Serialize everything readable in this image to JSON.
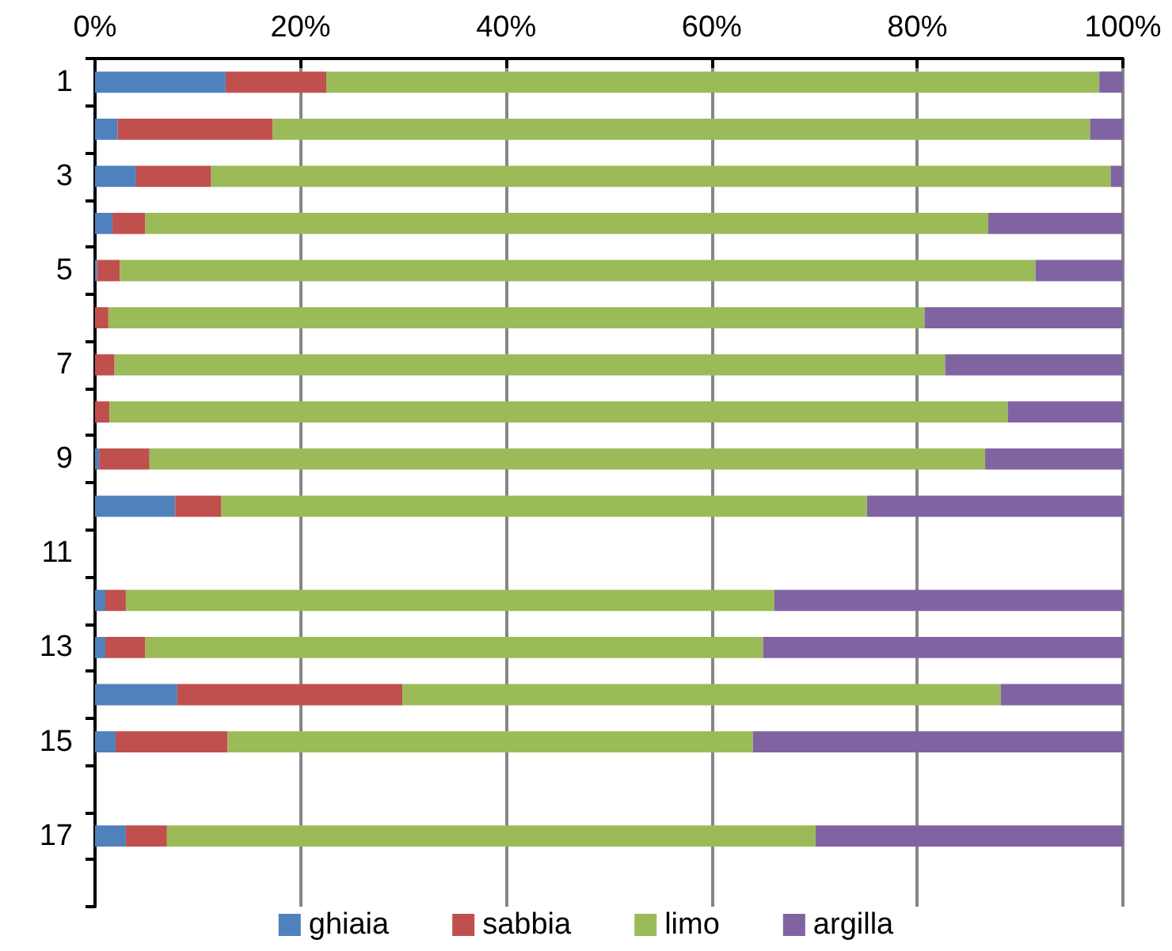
{
  "chart_data": {
    "type": "bar",
    "orientation": "horizontal",
    "stacked": true,
    "categories": [
      "1",
      null,
      "3",
      null,
      "5",
      null,
      "7",
      null,
      "9",
      null,
      "11",
      null,
      "13",
      null,
      "15",
      null,
      "17",
      null
    ],
    "series": [
      {
        "name": "ghiaia",
        "color": "#4f81bd",
        "values": [
          12.7,
          2.2,
          4.0,
          1.7,
          0.2,
          0,
          0,
          0,
          0.4,
          7.8,
          null,
          1.0,
          1.0,
          8.0,
          2.0,
          null,
          3.0,
          null
        ]
      },
      {
        "name": "sabbia",
        "color": "#c0504d",
        "values": [
          9.8,
          15.1,
          7.3,
          3.2,
          2.2,
          1.3,
          1.9,
          1.4,
          4.9,
          4.5,
          null,
          2.0,
          3.9,
          21.9,
          10.9,
          null,
          4.0,
          null
        ]
      },
      {
        "name": "limo",
        "color": "#9bbb59",
        "values": [
          75.2,
          79.5,
          87.5,
          82.0,
          89.1,
          79.4,
          80.8,
          87.4,
          81.3,
          62.8,
          null,
          63.1,
          60.1,
          58.2,
          51.1,
          null,
          63.1,
          null
        ]
      },
      {
        "name": "argilla",
        "color": "#8064a2",
        "values": [
          2.3,
          3.2,
          1.2,
          13.1,
          8.5,
          19.3,
          17.3,
          11.2,
          13.4,
          24.9,
          null,
          33.9,
          35.0,
          11.9,
          36.0,
          null,
          29.9,
          null
        ]
      }
    ],
    "xlim": [
      0,
      100
    ],
    "xticks": [
      {
        "value": 0,
        "label": "0%"
      },
      {
        "value": 20,
        "label": "20%"
      },
      {
        "value": 40,
        "label": "40%"
      },
      {
        "value": 60,
        "label": "60%"
      },
      {
        "value": 80,
        "label": "80%"
      },
      {
        "value": 100,
        "label": "100%"
      }
    ],
    "grid": "x",
    "legend": "bottom"
  }
}
